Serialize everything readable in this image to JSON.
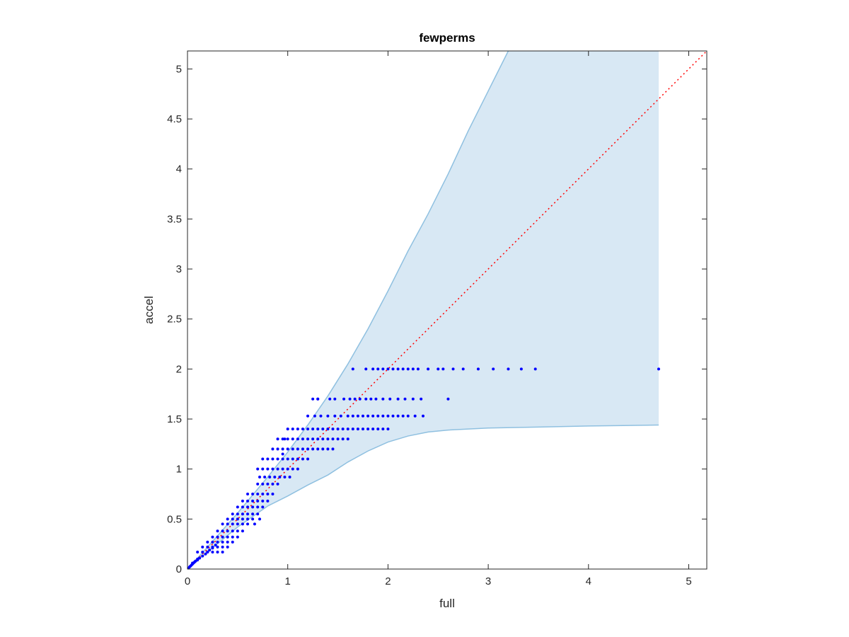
{
  "chart_data": {
    "type": "scatter",
    "title": "fewperms",
    "xlabel": "full",
    "ylabel": "accel",
    "xlim": [
      0,
      5.18
    ],
    "ylim": [
      0,
      5.18
    ],
    "xticks": [
      0,
      1,
      2,
      3,
      4,
      5
    ],
    "xtick_labels": [
      "0",
      "1",
      "2",
      "3",
      "4",
      "5"
    ],
    "yticks": [
      0,
      0.5,
      1,
      1.5,
      2,
      2.5,
      3,
      3.5,
      4,
      4.5,
      5
    ],
    "ytick_labels": [
      "0",
      "0.5",
      "1",
      "1.5",
      "2",
      "2.5",
      "3",
      "3.5",
      "4",
      "4.5",
      "5"
    ],
    "grid": false,
    "colors": {
      "points": "#0000ff",
      "band_fill": "#d8e8f4",
      "band_edge": "#8fc0e0",
      "reference_line": "#ff0000"
    },
    "reference_line": {
      "style": "dotted",
      "from": [
        0,
        0
      ],
      "to": [
        5.18,
        5.18
      ]
    },
    "band": {
      "upper": [
        [
          0,
          0
        ],
        [
          0.2,
          0.22
        ],
        [
          0.5,
          0.56
        ],
        [
          0.8,
          0.92
        ],
        [
          1.0,
          1.17
        ],
        [
          1.2,
          1.44
        ],
        [
          1.4,
          1.73
        ],
        [
          1.6,
          2.05
        ],
        [
          1.8,
          2.4
        ],
        [
          2.0,
          2.78
        ],
        [
          2.2,
          3.18
        ],
        [
          2.4,
          3.55
        ],
        [
          2.6,
          3.95
        ],
        [
          2.8,
          4.38
        ],
        [
          3.0,
          4.78
        ],
        [
          3.2,
          5.18
        ]
      ],
      "upper_top_end": 4.7,
      "lower": [
        [
          0,
          0
        ],
        [
          0.2,
          0.17
        ],
        [
          0.5,
          0.42
        ],
        [
          0.8,
          0.63
        ],
        [
          1.0,
          0.73
        ],
        [
          1.2,
          0.84
        ],
        [
          1.4,
          0.94
        ],
        [
          1.6,
          1.07
        ],
        [
          1.8,
          1.18
        ],
        [
          2.0,
          1.27
        ],
        [
          2.2,
          1.33
        ],
        [
          2.4,
          1.37
        ],
        [
          2.6,
          1.39
        ],
        [
          3.0,
          1.41
        ],
        [
          3.5,
          1.42
        ],
        [
          4.0,
          1.43
        ],
        [
          4.7,
          1.44
        ]
      ]
    },
    "series": [
      {
        "x": [
          1.65,
          1.78,
          1.85,
          1.9,
          1.95,
          2.0,
          2.05,
          2.1,
          2.15,
          2.2,
          2.25,
          2.3,
          2.4,
          2.5,
          2.55,
          2.65,
          2.75,
          2.9,
          3.05,
          3.2,
          3.33,
          3.47,
          4.7,
          1.3,
          1.42,
          1.47,
          1.56,
          1.62,
          1.67,
          1.72,
          1.78,
          1.83,
          1.88,
          1.95,
          2.02,
          2.1,
          2.17,
          2.25,
          2.33,
          2.6,
          1.2,
          1.27,
          1.33,
          1.4,
          1.47,
          1.53,
          1.6,
          1.65,
          1.7,
          1.75,
          1.8,
          1.85,
          1.9,
          1.95,
          2.0,
          2.05,
          2.1,
          2.15,
          2.2,
          2.27,
          2.35,
          1.0,
          1.05,
          1.1,
          1.15,
          1.2,
          1.25,
          1.3,
          1.35,
          1.4,
          1.45,
          1.5,
          1.55,
          1.6,
          1.65,
          1.7,
          1.75,
          1.8,
          1.85,
          1.9,
          1.95,
          2.0,
          0.9,
          0.95,
          1.0,
          1.05,
          1.1,
          1.15,
          1.2,
          1.25,
          1.3,
          1.35,
          1.4,
          1.45,
          1.5,
          1.55,
          1.6,
          0.85,
          0.9,
          0.95,
          1.0,
          1.05,
          1.1,
          1.15,
          1.2,
          1.25,
          1.3,
          1.35,
          1.4,
          1.45,
          0.75,
          0.8,
          0.85,
          0.9,
          0.95,
          1.0,
          1.05,
          1.1,
          1.15,
          1.2,
          0.7,
          0.75,
          0.8,
          0.85,
          0.9,
          0.95,
          1.0,
          1.05,
          1.1,
          0.72,
          0.77,
          0.82,
          0.87,
          0.92,
          0.97,
          1.02,
          0.7,
          0.75,
          0.8,
          0.85,
          0.9,
          0.6,
          0.65,
          0.7,
          0.75,
          0.8,
          0.85,
          0.55,
          0.6,
          0.65,
          0.7,
          0.75,
          0.8,
          0.5,
          0.55,
          0.6,
          0.65,
          0.7,
          0.75,
          0.45,
          0.5,
          0.55,
          0.6,
          0.65,
          0.7,
          0.4,
          0.45,
          0.5,
          0.55,
          0.6,
          0.65,
          0.72,
          0.35,
          0.4,
          0.45,
          0.5,
          0.55,
          0.6,
          0.67,
          0.3,
          0.35,
          0.4,
          0.45,
          0.5,
          0.55,
          0.25,
          0.3,
          0.35,
          0.4,
          0.45,
          0.5,
          0.2,
          0.25,
          0.3,
          0.35,
          0.4,
          0.45,
          0.15,
          0.2,
          0.25,
          0.3,
          0.35,
          0.4,
          0.1,
          0.15,
          0.2,
          0.25,
          0.3,
          0.35,
          0.05,
          0.08,
          0.1,
          0.12,
          0.15,
          0.18,
          0.2,
          0.22,
          0.25,
          0.28,
          0.01,
          0.02,
          0.03,
          0.04,
          0.05,
          0.06,
          0.07,
          0.08,
          0.1,
          0.12,
          0.95,
          0.97,
          1.25,
          1.3
        ],
        "y": [
          2,
          2,
          2,
          2,
          2,
          2,
          2,
          2,
          2,
          2,
          2,
          2,
          2,
          2,
          2,
          2,
          2,
          2,
          2,
          2,
          2,
          2,
          2,
          1.7,
          1.7,
          1.7,
          1.7,
          1.7,
          1.7,
          1.7,
          1.7,
          1.7,
          1.7,
          1.7,
          1.7,
          1.7,
          1.7,
          1.7,
          1.7,
          1.7,
          1.53,
          1.53,
          1.53,
          1.53,
          1.53,
          1.53,
          1.53,
          1.53,
          1.53,
          1.53,
          1.53,
          1.53,
          1.53,
          1.53,
          1.53,
          1.53,
          1.53,
          1.53,
          1.53,
          1.53,
          1.53,
          1.4,
          1.4,
          1.4,
          1.4,
          1.4,
          1.4,
          1.4,
          1.4,
          1.4,
          1.4,
          1.4,
          1.4,
          1.4,
          1.4,
          1.4,
          1.4,
          1.4,
          1.4,
          1.4,
          1.4,
          1.4,
          1.3,
          1.3,
          1.3,
          1.3,
          1.3,
          1.3,
          1.3,
          1.3,
          1.3,
          1.3,
          1.3,
          1.3,
          1.3,
          1.3,
          1.3,
          1.2,
          1.2,
          1.2,
          1.2,
          1.2,
          1.2,
          1.2,
          1.2,
          1.2,
          1.2,
          1.2,
          1.2,
          1.2,
          1.1,
          1.1,
          1.1,
          1.1,
          1.1,
          1.1,
          1.1,
          1.1,
          1.1,
          1.1,
          1.0,
          1.0,
          1.0,
          1.0,
          1.0,
          1.0,
          1.0,
          1.0,
          1.0,
          0.92,
          0.92,
          0.92,
          0.92,
          0.92,
          0.92,
          0.92,
          0.85,
          0.85,
          0.85,
          0.85,
          0.85,
          0.75,
          0.75,
          0.75,
          0.75,
          0.75,
          0.75,
          0.68,
          0.68,
          0.68,
          0.68,
          0.68,
          0.68,
          0.62,
          0.62,
          0.62,
          0.62,
          0.62,
          0.62,
          0.55,
          0.55,
          0.55,
          0.55,
          0.55,
          0.55,
          0.5,
          0.5,
          0.5,
          0.5,
          0.5,
          0.5,
          0.5,
          0.45,
          0.45,
          0.45,
          0.45,
          0.45,
          0.45,
          0.45,
          0.38,
          0.38,
          0.38,
          0.38,
          0.38,
          0.38,
          0.32,
          0.32,
          0.32,
          0.32,
          0.32,
          0.32,
          0.27,
          0.27,
          0.27,
          0.27,
          0.27,
          0.27,
          0.22,
          0.22,
          0.22,
          0.22,
          0.22,
          0.22,
          0.17,
          0.17,
          0.17,
          0.17,
          0.17,
          0.17,
          0.06,
          0.08,
          0.1,
          0.11,
          0.13,
          0.15,
          0.17,
          0.19,
          0.21,
          0.24,
          0.01,
          0.02,
          0.03,
          0.04,
          0.05,
          0.06,
          0.07,
          0.08,
          0.09,
          0.11,
          1.15,
          1.3,
          1.7,
          1.7
        ]
      }
    ]
  }
}
